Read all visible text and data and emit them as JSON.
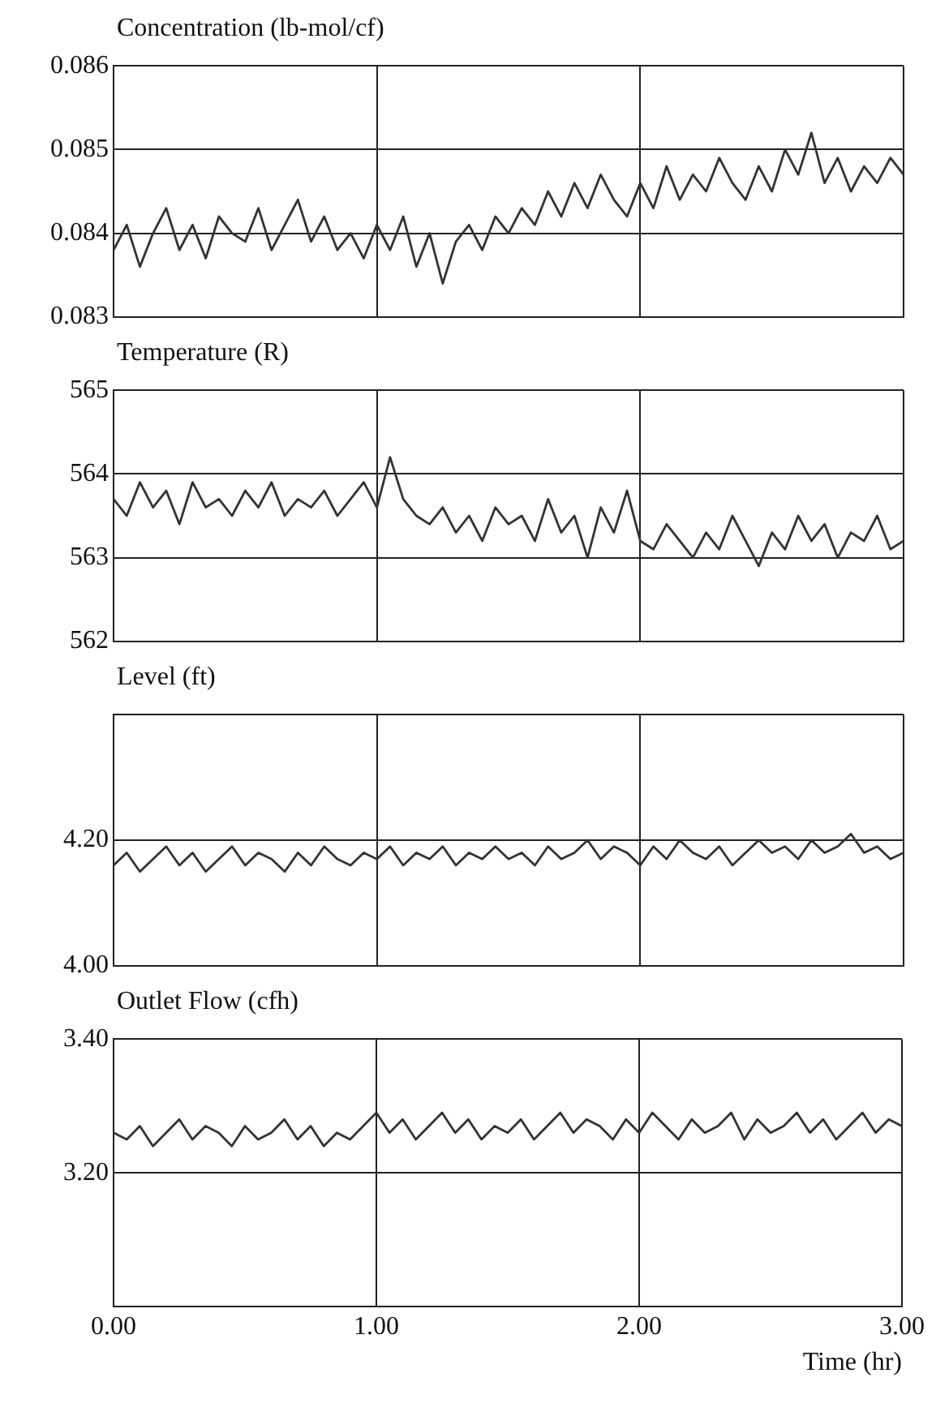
{
  "chart_data": [
    {
      "type": "line",
      "title": "Concentration (lb-mol/cf)",
      "color": "#333333",
      "grid": true,
      "legend": false,
      "tick_labels": "y",
      "xlim": [
        0,
        3
      ],
      "xticks": [
        0,
        1,
        2,
        3
      ],
      "ylim": [
        0.083,
        0.086
      ],
      "yticks": [
        0.083,
        0.084,
        0.085,
        0.086
      ],
      "x": [
        0,
        0.05,
        0.1,
        0.15,
        0.2,
        0.25,
        0.3,
        0.35,
        0.4,
        0.45,
        0.5,
        0.55,
        0.6,
        0.65,
        0.7,
        0.75,
        0.8,
        0.85,
        0.9,
        0.95,
        1,
        1.05,
        1.1,
        1.15,
        1.2,
        1.25,
        1.3,
        1.35,
        1.4,
        1.45,
        1.5,
        1.55,
        1.6,
        1.65,
        1.7,
        1.75,
        1.8,
        1.85,
        1.9,
        1.95,
        2,
        2.05,
        2.1,
        2.15,
        2.2,
        2.25,
        2.3,
        2.35,
        2.4,
        2.45,
        2.5,
        2.55,
        2.6,
        2.65,
        2.7,
        2.75,
        2.8,
        2.85,
        2.9,
        2.95,
        3
      ],
      "values": [
        0.0838,
        0.0841,
        0.0836,
        0.084,
        0.0843,
        0.0838,
        0.0841,
        0.0837,
        0.0842,
        0.084,
        0.0839,
        0.0843,
        0.0838,
        0.0841,
        0.0844,
        0.0839,
        0.0842,
        0.0838,
        0.084,
        0.0837,
        0.0841,
        0.0838,
        0.0842,
        0.0836,
        0.084,
        0.0834,
        0.0839,
        0.0841,
        0.0838,
        0.0842,
        0.084,
        0.0843,
        0.0841,
        0.0845,
        0.0842,
        0.0846,
        0.0843,
        0.0847,
        0.0844,
        0.0842,
        0.0846,
        0.0843,
        0.0848,
        0.0844,
        0.0847,
        0.0845,
        0.0849,
        0.0846,
        0.0844,
        0.0848,
        0.0845,
        0.085,
        0.0847,
        0.0852,
        0.0846,
        0.0849,
        0.0845,
        0.0848,
        0.0846,
        0.0849,
        0.0847
      ]
    },
    {
      "type": "line",
      "title": "Temperature (R)",
      "color": "#333333",
      "grid": true,
      "legend": false,
      "tick_labels": "y",
      "xlim": [
        0,
        3
      ],
      "xticks": [
        0,
        1,
        2,
        3
      ],
      "ylim": [
        562,
        565
      ],
      "yticks": [
        562,
        563,
        564,
        565
      ],
      "x": [
        0,
        0.05,
        0.1,
        0.15,
        0.2,
        0.25,
        0.3,
        0.35,
        0.4,
        0.45,
        0.5,
        0.55,
        0.6,
        0.65,
        0.7,
        0.75,
        0.8,
        0.85,
        0.9,
        0.95,
        1,
        1.05,
        1.1,
        1.15,
        1.2,
        1.25,
        1.3,
        1.35,
        1.4,
        1.45,
        1.5,
        1.55,
        1.6,
        1.65,
        1.7,
        1.75,
        1.8,
        1.85,
        1.9,
        1.95,
        2,
        2.05,
        2.1,
        2.15,
        2.2,
        2.25,
        2.3,
        2.35,
        2.4,
        2.45,
        2.5,
        2.55,
        2.6,
        2.65,
        2.7,
        2.75,
        2.8,
        2.85,
        2.9,
        2.95,
        3
      ],
      "values": [
        563.7,
        563.5,
        563.9,
        563.6,
        563.8,
        563.4,
        563.9,
        563.6,
        563.7,
        563.5,
        563.8,
        563.6,
        563.9,
        563.5,
        563.7,
        563.6,
        563.8,
        563.5,
        563.7,
        563.9,
        563.6,
        564.2,
        563.7,
        563.5,
        563.4,
        563.6,
        563.3,
        563.5,
        563.2,
        563.6,
        563.4,
        563.5,
        563.2,
        563.7,
        563.3,
        563.5,
        563.0,
        563.6,
        563.3,
        563.8,
        563.2,
        563.1,
        563.4,
        563.2,
        563.0,
        563.3,
        563.1,
        563.5,
        563.2,
        562.9,
        563.3,
        563.1,
        563.5,
        563.2,
        563.4,
        563.0,
        563.3,
        563.2,
        563.5,
        563.1,
        563.2
      ]
    },
    {
      "type": "line",
      "title": "Level (ft)",
      "color": "#333333",
      "grid": true,
      "legend": false,
      "tick_labels": "y",
      "xlim": [
        0,
        3
      ],
      "xticks": [
        0,
        1,
        2,
        3
      ],
      "ylim": [
        4.0,
        4.4
      ],
      "yticks": [
        {
          "value": 4.0,
          "label": "4.00"
        },
        {
          "value": 4.2,
          "label": "4.20"
        },
        {
          "value": 4.4,
          "label": null
        }
      ],
      "x": [
        0,
        0.05,
        0.1,
        0.15,
        0.2,
        0.25,
        0.3,
        0.35,
        0.4,
        0.45,
        0.5,
        0.55,
        0.6,
        0.65,
        0.7,
        0.75,
        0.8,
        0.85,
        0.9,
        0.95,
        1,
        1.05,
        1.1,
        1.15,
        1.2,
        1.25,
        1.3,
        1.35,
        1.4,
        1.45,
        1.5,
        1.55,
        1.6,
        1.65,
        1.7,
        1.75,
        1.8,
        1.85,
        1.9,
        1.95,
        2,
        2.05,
        2.1,
        2.15,
        2.2,
        2.25,
        2.3,
        2.35,
        2.4,
        2.45,
        2.5,
        2.55,
        2.6,
        2.65,
        2.7,
        2.75,
        2.8,
        2.85,
        2.9,
        2.95,
        3
      ],
      "values": [
        4.16,
        4.18,
        4.15,
        4.17,
        4.19,
        4.16,
        4.18,
        4.15,
        4.17,
        4.19,
        4.16,
        4.18,
        4.17,
        4.15,
        4.18,
        4.16,
        4.19,
        4.17,
        4.16,
        4.18,
        4.17,
        4.19,
        4.16,
        4.18,
        4.17,
        4.19,
        4.16,
        4.18,
        4.17,
        4.19,
        4.17,
        4.18,
        4.16,
        4.19,
        4.17,
        4.18,
        4.2,
        4.17,
        4.19,
        4.18,
        4.16,
        4.19,
        4.17,
        4.2,
        4.18,
        4.17,
        4.19,
        4.16,
        4.18,
        4.2,
        4.18,
        4.19,
        4.17,
        4.2,
        4.18,
        4.19,
        4.21,
        4.18,
        4.19,
        4.17,
        4.18
      ]
    },
    {
      "type": "line",
      "title": "Outlet Flow (cfh)",
      "xlabel": "Time (hr)",
      "color": "#333333",
      "grid": true,
      "legend": false,
      "xlim": [
        0,
        3
      ],
      "xticks": [
        {
          "value": 0,
          "label": "0.00"
        },
        {
          "value": 1,
          "label": "1.00"
        },
        {
          "value": 2,
          "label": "2.00"
        },
        {
          "value": 3,
          "label": "3.00"
        }
      ],
      "ylim": [
        3.0,
        3.4
      ],
      "yticks": [
        {
          "value": 3.0,
          "label": null
        },
        {
          "value": 3.2,
          "label": "3.20"
        },
        {
          "value": 3.4,
          "label": "3.40"
        }
      ],
      "x": [
        0,
        0.05,
        0.1,
        0.15,
        0.2,
        0.25,
        0.3,
        0.35,
        0.4,
        0.45,
        0.5,
        0.55,
        0.6,
        0.65,
        0.7,
        0.75,
        0.8,
        0.85,
        0.9,
        0.95,
        1,
        1.05,
        1.1,
        1.15,
        1.2,
        1.25,
        1.3,
        1.35,
        1.4,
        1.45,
        1.5,
        1.55,
        1.6,
        1.65,
        1.7,
        1.75,
        1.8,
        1.85,
        1.9,
        1.95,
        2,
        2.05,
        2.1,
        2.15,
        2.2,
        2.25,
        2.3,
        2.35,
        2.4,
        2.45,
        2.5,
        2.55,
        2.6,
        2.65,
        2.7,
        2.75,
        2.8,
        2.85,
        2.9,
        2.95,
        3
      ],
      "values": [
        3.26,
        3.25,
        3.27,
        3.24,
        3.26,
        3.28,
        3.25,
        3.27,
        3.26,
        3.24,
        3.27,
        3.25,
        3.26,
        3.28,
        3.25,
        3.27,
        3.24,
        3.26,
        3.25,
        3.27,
        3.29,
        3.26,
        3.28,
        3.25,
        3.27,
        3.29,
        3.26,
        3.28,
        3.25,
        3.27,
        3.26,
        3.28,
        3.25,
        3.27,
        3.29,
        3.26,
        3.28,
        3.27,
        3.25,
        3.28,
        3.26,
        3.29,
        3.27,
        3.25,
        3.28,
        3.26,
        3.27,
        3.29,
        3.25,
        3.28,
        3.26,
        3.27,
        3.29,
        3.26,
        3.28,
        3.25,
        3.27,
        3.29,
        3.26,
        3.28,
        3.27
      ]
    }
  ]
}
